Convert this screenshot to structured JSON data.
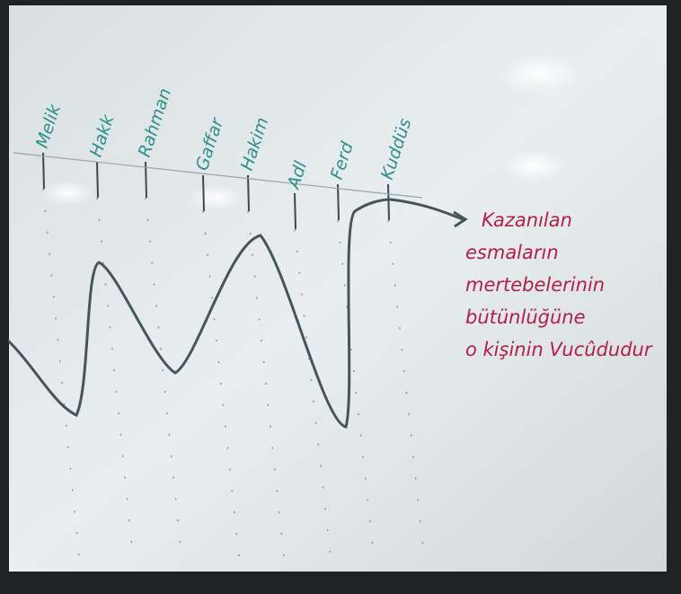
{
  "names": [
    "Melik",
    "Hakk",
    "Rahman",
    "Gaffar",
    "Hakim",
    "Adl",
    "Ferd",
    "Kuddüs"
  ],
  "annotation": {
    "lines": [
      "Kazanılan",
      "esmaların",
      "mertebelerinin",
      "bütünlüğüne",
      "o kişinin Vucûdudur"
    ]
  }
}
